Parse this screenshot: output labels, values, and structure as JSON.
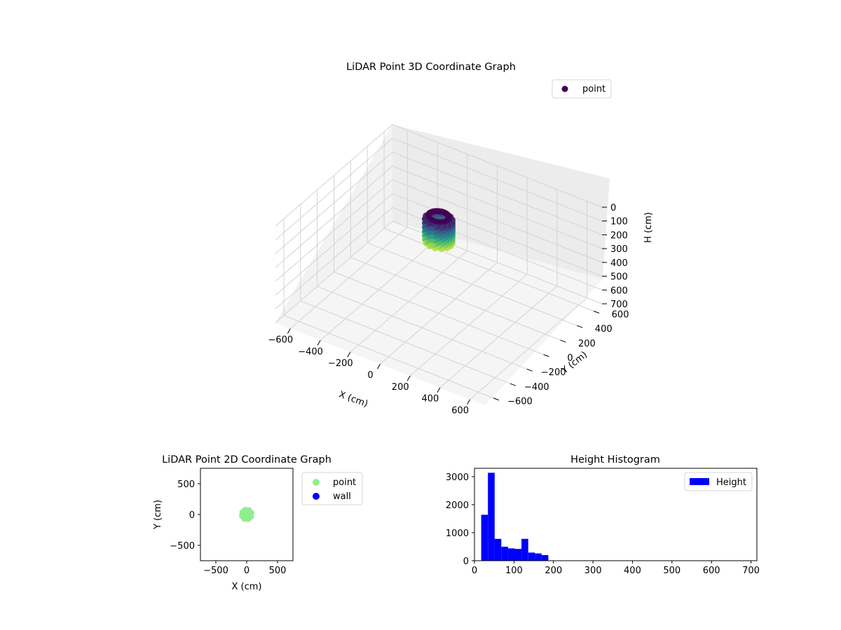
{
  "figure": {
    "colors": {
      "viridis_dark": "#440154",
      "viridis_light": "#fde725",
      "points_2d": "#90ee90",
      "wall_2d": "#0000ff",
      "histogram": "#0000ff"
    }
  },
  "chart_data": [
    {
      "type": "scatter",
      "title": "LiDAR Point 3D Coordinate Graph",
      "xlabel": "X (cm)",
      "ylabel": "Y (cm)",
      "zlabel": "H (cm)",
      "x_ticks": [
        "−600",
        "−400",
        "−200",
        "0",
        "200",
        "400",
        "600"
      ],
      "y_ticks": [
        "−600",
        "−400",
        "−200",
        "0",
        "200",
        "400",
        "600"
      ],
      "z_ticks": [
        "0",
        "100",
        "200",
        "300",
        "400",
        "500",
        "600",
        "700"
      ],
      "xlim": [
        -700,
        700
      ],
      "ylim": [
        -700,
        700
      ],
      "zlim": [
        0,
        700
      ],
      "z_inverted": true,
      "colormap": "viridis",
      "cluster": {
        "center_x": 0,
        "center_y": 0,
        "ring_radius": 60,
        "ring_height": 0,
        "body_radius": 80,
        "body_height_range": [
          20,
          180
        ]
      },
      "legend": {
        "entries": [
          "point"
        ],
        "position": "top-right"
      },
      "grid": true
    },
    {
      "type": "scatter",
      "title": "LiDAR Point 2D Coordinate Graph",
      "xlabel": "X (cm)",
      "ylabel": "Y (cm)",
      "xlim": [
        -750,
        750
      ],
      "ylim": [
        -750,
        750
      ],
      "x_ticks": [
        "−500",
        "0",
        "500"
      ],
      "y_ticks": [
        "−500",
        "0",
        "500"
      ],
      "series": [
        {
          "name": "point",
          "center": [
            0,
            0
          ],
          "radius": 80
        },
        {
          "name": "wall",
          "points": []
        }
      ],
      "legend": {
        "entries": [
          "point",
          "wall"
        ],
        "position": "outside-right"
      },
      "grid": false
    },
    {
      "type": "bar",
      "title": "Height Histogram",
      "xlim": [
        0,
        715
      ],
      "ylim": [
        0,
        3300
      ],
      "x_ticks": [
        "0",
        "100",
        "200",
        "300",
        "400",
        "500",
        "600",
        "700"
      ],
      "y_ticks": [
        "0",
        "1000",
        "2000",
        "3000"
      ],
      "bin_width": 17,
      "bins": [
        {
          "x": 17,
          "count": 1640
        },
        {
          "x": 34,
          "count": 3140
        },
        {
          "x": 51,
          "count": 780
        },
        {
          "x": 68,
          "count": 500
        },
        {
          "x": 85,
          "count": 440
        },
        {
          "x": 102,
          "count": 420
        },
        {
          "x": 119,
          "count": 780
        },
        {
          "x": 136,
          "count": 290
        },
        {
          "x": 153,
          "count": 260
        },
        {
          "x": 170,
          "count": 200
        }
      ],
      "legend": {
        "entries": [
          "Height"
        ],
        "position": "top-right"
      },
      "grid": false
    }
  ]
}
